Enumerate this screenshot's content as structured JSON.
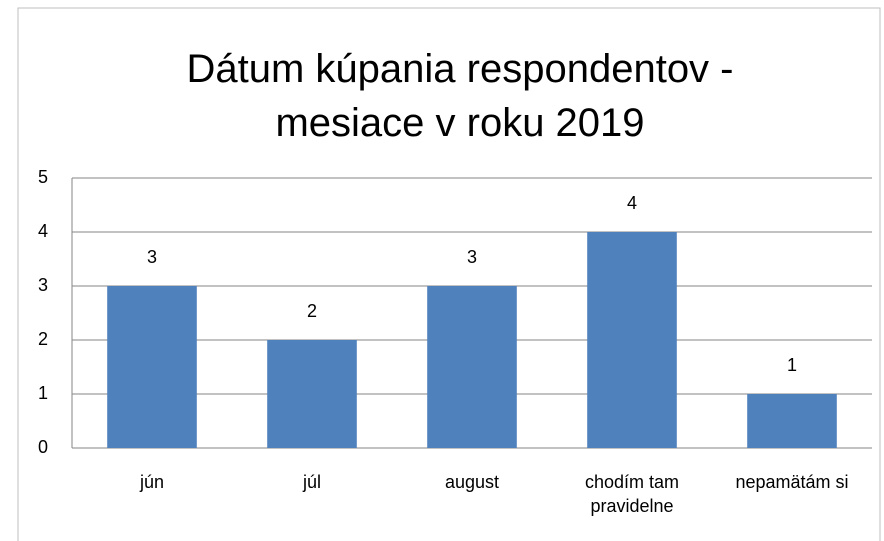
{
  "chart_data": {
    "type": "bar",
    "title": "Dátum kúpania respondentov - mesiace v roku 2019",
    "categories": [
      "jún",
      "júl",
      "august",
      "chodím tam pravidelne",
      "nepamätám si"
    ],
    "values": [
      3,
      2,
      3,
      4,
      1
    ],
    "color": "#4f81bd",
    "ylim": [
      0,
      5
    ],
    "yticks": [
      0,
      1,
      2,
      3,
      4,
      5
    ],
    "grid": true
  }
}
